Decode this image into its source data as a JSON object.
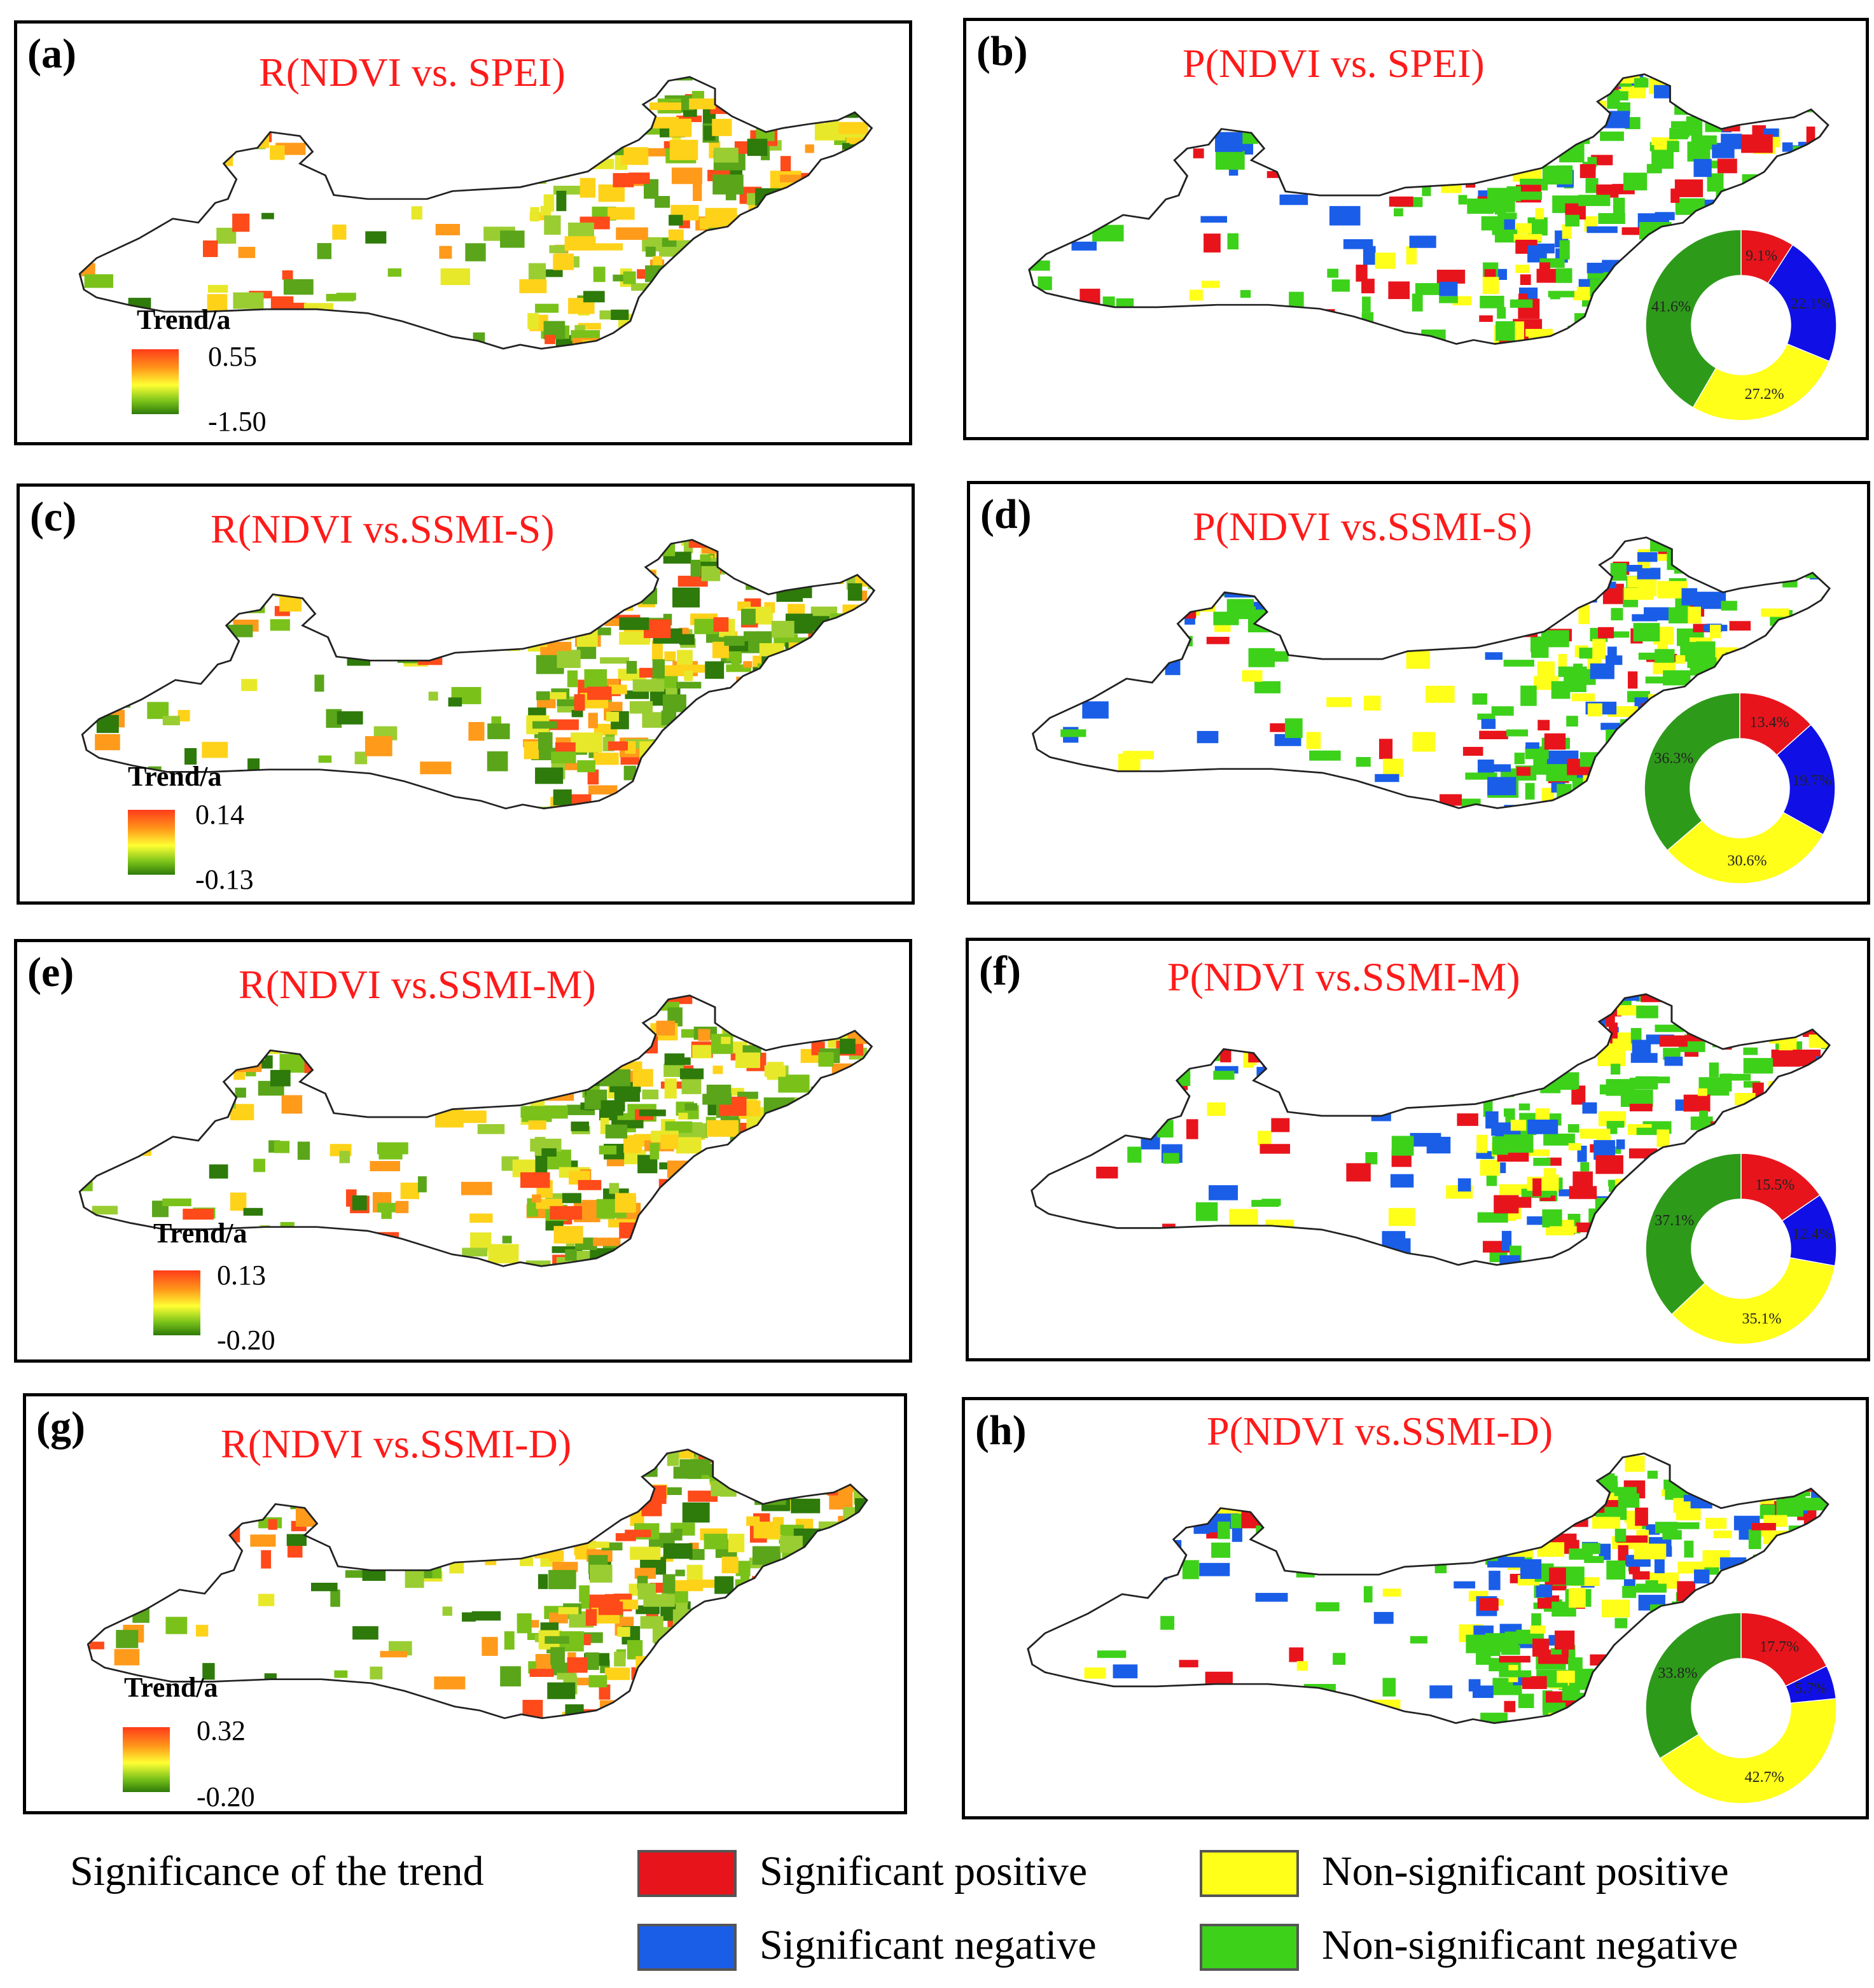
{
  "panels": [
    {
      "label": "(a)",
      "title": "R(NDVI vs. SPEI)",
      "type": "R",
      "legend_title": "Trend/a",
      "max": "0.55",
      "min": "-1.50"
    },
    {
      "label": "(b)",
      "title": "P(NDVI vs. SPEI)",
      "type": "P",
      "slices": {
        "sig_pos": "9.1%",
        "sig_neg": "22.1%",
        "nonsig_pos": "27.2%",
        "nonsig_neg": "41.6%"
      },
      "fractions": [
        9.1,
        22.1,
        27.2,
        41.6
      ]
    },
    {
      "label": "(c)",
      "title": "R(NDVI vs.SSMI-S)",
      "type": "R",
      "legend_title": "Trend/a",
      "max": "0.14",
      "min": "-0.13"
    },
    {
      "label": "(d)",
      "title": "P(NDVI vs.SSMI-S)",
      "type": "P",
      "slices": {
        "sig_pos": "13.4%",
        "sig_neg": "19.7%",
        "nonsig_pos": "30.6%",
        "nonsig_neg": "36.3%"
      },
      "fractions": [
        13.4,
        19.7,
        30.6,
        36.3
      ]
    },
    {
      "label": "(e)",
      "title": "R(NDVI vs.SSMI-M)",
      "type": "R",
      "legend_title": "Trend/a",
      "max": "0.13",
      "min": "-0.20"
    },
    {
      "label": "(f)",
      "title": "P(NDVI vs.SSMI-M)",
      "type": "P",
      "slices": {
        "sig_pos": "15.5%",
        "sig_neg": "12.4%",
        "nonsig_pos": "35.1%",
        "nonsig_neg": "37.1%"
      },
      "fractions": [
        15.5,
        12.4,
        35.1,
        37.1
      ]
    },
    {
      "label": "(g)",
      "title": "R(NDVI vs.SSMI-D)",
      "type": "R",
      "legend_title": "Trend/a",
      "max": "0.32",
      "min": "-0.20"
    },
    {
      "label": "(h)",
      "title": "P(NDVI vs.SSMI-D)",
      "type": "P",
      "slices": {
        "sig_pos": "17.7%",
        "sig_neg": "5.7%",
        "nonsig_pos": "42.7%",
        "nonsig_neg": "33.8%"
      },
      "fractions": [
        17.7,
        5.7,
        42.7,
        33.8
      ]
    }
  ],
  "legend": {
    "title": "Significance of the trend",
    "sig_pos": "Significant positive",
    "sig_neg": "Significant negative",
    "nonsig_pos": "Non-significant positive",
    "nonsig_neg": "Non-significant negative"
  },
  "colors": {
    "sig_pos": "#e8141c",
    "sig_neg": "#1a5ee8",
    "nonsig_pos": "#ffff1a",
    "nonsig_neg": "#3dd11a",
    "title": "#ff1a1a",
    "donut_sig_neg": "#1010e6",
    "donut_nonsig_neg": "#2e9a1a"
  }
}
